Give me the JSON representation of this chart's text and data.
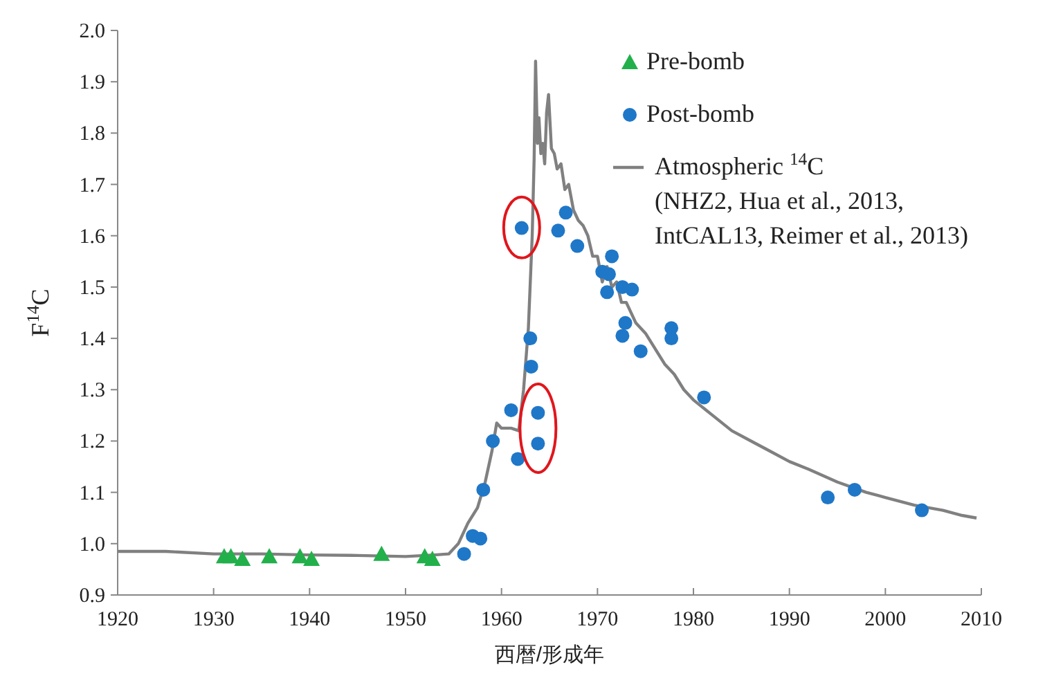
{
  "chart_data": {
    "type": "scatter",
    "xlabel": "西暦/形成年",
    "ylabel": "F$^{14}$C",
    "xlim": [
      1920,
      2010
    ],
    "ylim": [
      0.9,
      2.0
    ],
    "xticks": [
      1920,
      1930,
      1940,
      1950,
      1960,
      1970,
      1980,
      1990,
      2000,
      2010
    ],
    "yticks": [
      {
        "value": 0.9,
        "label": "0.9"
      },
      {
        "value": 1.0,
        "label": "1.0"
      },
      {
        "value": 1.1,
        "label": "1.1"
      },
      {
        "value": 1.2,
        "label": "1.2"
      },
      {
        "value": 1.3,
        "label": "1.3"
      },
      {
        "value": 1.4,
        "label": "1.4"
      },
      {
        "value": 1.5,
        "label": "1.5"
      },
      {
        "value": 1.6,
        "label": "1.6"
      },
      {
        "value": 1.7,
        "label": "1.7"
      },
      {
        "value": 1.8,
        "label": "1.8"
      },
      {
        "value": 1.9,
        "label": "1.9"
      },
      {
        "value": 2.0,
        "label": "2.0"
      }
    ],
    "legend": "top right",
    "grid": false,
    "series": [
      {
        "name": "Pre-bomb",
        "marker": "triangle",
        "color": "#22b04b",
        "x": [
          1931.1,
          1931.8,
          1933.0,
          1935.8,
          1939.0,
          1940.2,
          1947.5,
          1952.0,
          1952.8
        ],
        "values": [
          0.975,
          0.975,
          0.97,
          0.975,
          0.975,
          0.97,
          0.98,
          0.975,
          0.97
        ]
      },
      {
        "name": "Post-bomb",
        "marker": "circle",
        "color": "#1f77c8",
        "x": [
          1956.1,
          1957.0,
          1957.8,
          1958.1,
          1959.1,
          1961.0,
          1961.7,
          1962.1,
          1963.0,
          1963.1,
          1963.8,
          1963.8,
          1965.9,
          1966.7,
          1967.9,
          1971.5,
          1970.5,
          1971.2,
          1971.0,
          1972.6,
          1973.6,
          1972.9,
          1972.6,
          1974.5,
          1977.7,
          1977.7,
          1981.1,
          1994.0,
          1996.8,
          2003.8
        ],
        "values": [
          0.98,
          1.015,
          1.01,
          1.105,
          1.2,
          1.26,
          1.165,
          1.615,
          1.4,
          1.345,
          1.255,
          1.195,
          1.61,
          1.645,
          1.58,
          1.56,
          1.53,
          1.525,
          1.49,
          1.5,
          1.495,
          1.43,
          1.405,
          1.375,
          1.42,
          1.4,
          1.285,
          1.09,
          1.105,
          1.065
        ]
      },
      {
        "name": "Atmospheric $^{14}$C\n(NHZ2, Hua et al., 2013,\nIntCAL13, Reimer et al., 2013)",
        "type": "line",
        "marker": "none",
        "line_style": "solid",
        "color": "#808080",
        "x": [
          1920,
          1925,
          1930,
          1935,
          1940,
          1945,
          1950,
          1953,
          1954.5,
          1955.5,
          1956.5,
          1957.5,
          1958.3,
          1959,
          1959.5,
          1960,
          1961,
          1961.8,
          1962.3,
          1962.8,
          1963.2,
          1963.4,
          1963.55,
          1963.75,
          1963.9,
          1964.1,
          1964.3,
          1964.5,
          1964.7,
          1964.9,
          1965.2,
          1965.5,
          1965.8,
          1966.2,
          1966.6,
          1967,
          1967.5,
          1968,
          1968.5,
          1969,
          1969.5,
          1970,
          1970.5,
          1971,
          1971.5,
          1972,
          1972.5,
          1973,
          1974,
          1975,
          1976,
          1977,
          1978,
          1979,
          1980,
          1982,
          1984,
          1986,
          1988,
          1990,
          1992,
          1995,
          1998,
          2000,
          2003,
          2006,
          2008,
          2009.5
        ],
        "values": [
          0.985,
          0.985,
          0.98,
          0.98,
          0.978,
          0.977,
          0.975,
          0.978,
          0.98,
          1.0,
          1.04,
          1.07,
          1.12,
          1.18,
          1.235,
          1.225,
          1.225,
          1.22,
          1.3,
          1.42,
          1.6,
          1.75,
          1.94,
          1.78,
          1.83,
          1.76,
          1.78,
          1.74,
          1.84,
          1.875,
          1.77,
          1.76,
          1.73,
          1.74,
          1.69,
          1.7,
          1.65,
          1.63,
          1.62,
          1.6,
          1.56,
          1.56,
          1.51,
          1.54,
          1.5,
          1.51,
          1.47,
          1.47,
          1.43,
          1.41,
          1.38,
          1.35,
          1.33,
          1.3,
          1.28,
          1.25,
          1.22,
          1.2,
          1.18,
          1.16,
          1.145,
          1.12,
          1.1,
          1.09,
          1.075,
          1.065,
          1.055,
          1.05
        ]
      }
    ]
  }
}
